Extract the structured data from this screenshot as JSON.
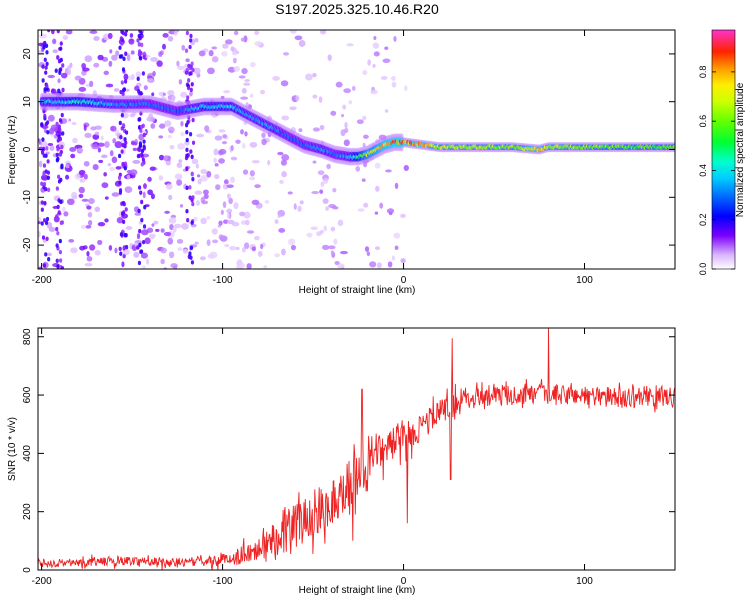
{
  "title": "S197.2025.325.10.46.R20",
  "chart_data": [
    {
      "type": "heatmap",
      "name": "spectrogram",
      "xlabel": "Height of straight line (km)",
      "ylabel": "Frequency (Hz)",
      "xlim": [
        -202,
        150
      ],
      "ylim": [
        -25,
        25
      ],
      "xticks": [
        -200,
        -100,
        0,
        100
      ],
      "yticks": [
        -20,
        -10,
        0,
        10,
        20
      ],
      "colorbar": {
        "label": "Normalized spectral amplitude",
        "range": [
          0,
          0.97
        ],
        "ticks": [
          0.0,
          0.2,
          0.4,
          0.6,
          0.8
        ],
        "tick_labels": [
          "0.0",
          "0.2",
          "0.4",
          "0.6",
          "0.8"
        ]
      },
      "ridge": {
        "x": [
          -200,
          -180,
          -160,
          -140,
          -125,
          -110,
          -95,
          -85,
          -75,
          -65,
          -55,
          -45,
          -38,
          -30,
          -25,
          -20,
          -15,
          -10,
          -5,
          0,
          10,
          20,
          40,
          60,
          75,
          80,
          100,
          120,
          150
        ],
        "freq": [
          10,
          10,
          9.5,
          9.5,
          8,
          9,
          9,
          7,
          5,
          3,
          1,
          0,
          -1,
          -1.5,
          -1.5,
          -1,
          0,
          1,
          1.5,
          1.5,
          1,
          0.5,
          0.5,
          0.5,
          0,
          0.5,
          0.5,
          0.5,
          0.5
        ],
        "peak_amplitude": [
          0.35,
          0.45,
          0.35,
          0.3,
          0.3,
          0.4,
          0.4,
          0.35,
          0.35,
          0.3,
          0.3,
          0.35,
          0.3,
          0.35,
          0.5,
          0.7,
          0.75,
          0.85,
          0.9,
          0.9,
          0.85,
          0.7,
          0.7,
          0.65,
          0.8,
          0.7,
          0.65,
          0.6,
          0.6
        ]
      }
    },
    {
      "type": "line",
      "name": "snr",
      "xlabel": "Height of straight line (km)",
      "ylabel": "SNR (10 * v/v)",
      "xlim": [
        -202,
        150
      ],
      "ylim": [
        0,
        830
      ],
      "xticks": [
        -200,
        -100,
        0,
        100
      ],
      "yticks": [
        0,
        200,
        400,
        600,
        800
      ],
      "series": [
        {
          "name": "SNR",
          "color": "#ee2222",
          "x": [
            -202,
            -190,
            -180,
            -170,
            -160,
            -150,
            -140,
            -130,
            -120,
            -110,
            -100,
            -95,
            -90,
            -85,
            -80,
            -75,
            -70,
            -65,
            -60,
            -55,
            -50,
            -45,
            -40,
            -35,
            -30,
            -25,
            -20,
            -15,
            -10,
            -5,
            0,
            5,
            10,
            15,
            20,
            25,
            30,
            35,
            40,
            50,
            60,
            70,
            80,
            90,
            100,
            110,
            120,
            130,
            140,
            150
          ],
          "mean": [
            20,
            22,
            25,
            28,
            30,
            32,
            30,
            25,
            28,
            30,
            35,
            40,
            50,
            60,
            80,
            100,
            120,
            140,
            150,
            170,
            190,
            210,
            230,
            260,
            300,
            330,
            370,
            400,
            420,
            440,
            450,
            470,
            490,
            520,
            540,
            560,
            580,
            590,
            600,
            600,
            600,
            600,
            600,
            600,
            600,
            595,
            590,
            595,
            600,
            590
          ],
          "noise": [
            12,
            12,
            12,
            15,
            15,
            15,
            15,
            15,
            15,
            18,
            20,
            25,
            30,
            40,
            50,
            60,
            70,
            80,
            80,
            80,
            80,
            80,
            85,
            85,
            85,
            90,
            80,
            70,
            60,
            55,
            50,
            50,
            45,
            45,
            45,
            45,
            40,
            40,
            35,
            35,
            35,
            35,
            35,
            35,
            35,
            35,
            35,
            35,
            35,
            35
          ],
          "spikes": [
            {
              "x": -23,
              "y": 620
            },
            {
              "x": 27,
              "y": 795
            },
            {
              "x": 80,
              "y": 830
            },
            {
              "x": 26,
              "y": 310
            },
            {
              "x": 2,
              "y": 160
            },
            {
              "x": -28,
              "y": 100
            }
          ]
        }
      ]
    }
  ]
}
